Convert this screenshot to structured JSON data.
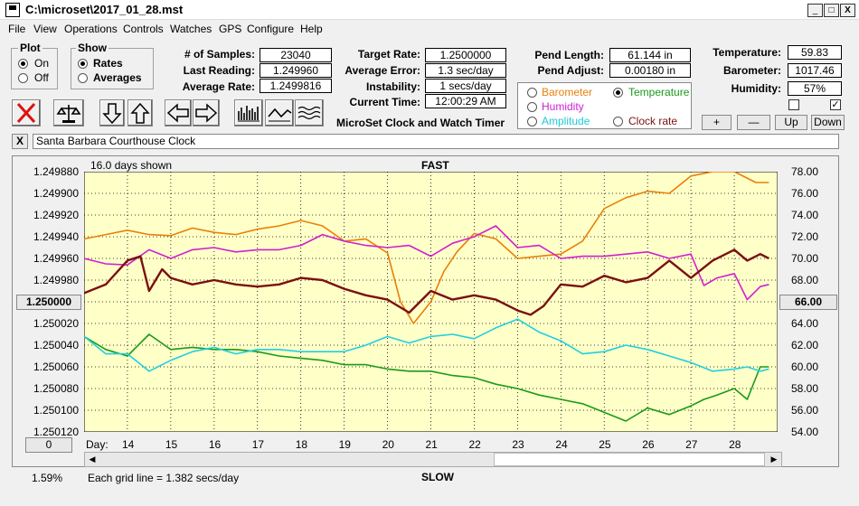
{
  "window": {
    "title": "C:\\microset\\2017_01_28.mst",
    "min": "_",
    "max": "□",
    "close": "X"
  },
  "menu": [
    "File",
    "View",
    "Operations",
    "Controls",
    "Watches",
    "GPS",
    "Configure",
    "Help"
  ],
  "plot_group": {
    "title": "Plot",
    "on": "On",
    "off": "Off",
    "selected": "On"
  },
  "show_group": {
    "title": "Show",
    "rates": "Rates",
    "averages": "Averages",
    "selected": "Rates"
  },
  "stats": {
    "samples_label": "# of Samples:",
    "samples": "23040",
    "last_label": "Last Reading:",
    "last": "1.249960",
    "avg_label": "Average Rate:",
    "avg": "1.2499816",
    "target_label": "Target Rate:",
    "target": "1.2500000",
    "error_label": "Average Error:",
    "error": "1.3 sec/day",
    "instab_label": "Instability:",
    "instab": "1 secs/day",
    "time_label": "Current Time:",
    "time": "12:00:29 AM",
    "pend_len_label": "Pend Length:",
    "pend_len": "61.144 in",
    "pend_adj_label": "Pend Adjust:",
    "pend_adj": "0.00180 in",
    "temp_label": "Temperature:",
    "temp": "59.83",
    "baro_label": "Barometer:",
    "baro": "1017.46",
    "hum_label": "Humidity:",
    "hum": "57%"
  },
  "app_caption": "MicroSet Clock and Watch Timer",
  "sensors": {
    "barometer": "Barometer",
    "temperature": "Temperature",
    "humidity": "Humidity",
    "amplitude": "Amplitude",
    "clock_rate": "Clock rate",
    "selected": "temperature",
    "colors": {
      "barometer": "#e8800a",
      "temperature": "#1a9a1a",
      "humidity": "#d020d0",
      "amplitude": "#20d0e0",
      "clock_rate": "#7a1010"
    }
  },
  "adjust_buttons": {
    "plus": "+",
    "minus": "—",
    "up": "Up",
    "down": "Down"
  },
  "checkboxes": [
    {
      "checked": false
    },
    {
      "checked": true
    }
  ],
  "watch_name": "Santa Barbara Courthouse Clock",
  "close_x": "X",
  "chart_header": {
    "days_shown": "16.0 days shown",
    "fast": "FAST",
    "slow": "SLOW"
  },
  "left_box": "1.250000",
  "right_box": "66.00",
  "bottom_left_box": "0",
  "percent": "1.59%",
  "grid_note": "Each grid line = 1.382 secs/day",
  "day_label": "Day:",
  "chart_data": {
    "type": "line",
    "x_label": "Day",
    "x_ticks": [
      14,
      15,
      16,
      17,
      18,
      19,
      20,
      21,
      22,
      23,
      24,
      25,
      26,
      27,
      28
    ],
    "xlim": [
      13.0,
      29.0
    ],
    "y_left_ticks": [
      "1.249880",
      "1.249900",
      "1.249920",
      "1.249940",
      "1.249960",
      "1.249980",
      "1.250000",
      "1.250020",
      "1.250040",
      "1.250060",
      "1.250080",
      "1.250100",
      "1.250120"
    ],
    "y_left_range": [
      1.24988,
      1.25012
    ],
    "y_right_ticks": [
      "78.00",
      "76.00",
      "74.00",
      "72.00",
      "70.00",
      "68.00",
      "66.00",
      "64.00",
      "62.00",
      "60.00",
      "58.00",
      "56.00",
      "54.00"
    ],
    "y_right_range": [
      78,
      54
    ],
    "series": [
      {
        "key": "barometer",
        "color": "#e8800a",
        "x": [
          13,
          13.5,
          14,
          14.5,
          15,
          15.5,
          16,
          16.5,
          17,
          17.5,
          18,
          18.5,
          19,
          19.5,
          20,
          20.3,
          20.6,
          21,
          21.3,
          21.6,
          22,
          22.5,
          23,
          23.5,
          24,
          24.5,
          25,
          25.5,
          26,
          26.5,
          27,
          27.5,
          28,
          28.5,
          28.8
        ],
        "y": [
          71.8,
          72.2,
          72.6,
          72.2,
          72.1,
          72.8,
          72.4,
          72.2,
          72.7,
          73.0,
          73.5,
          73.0,
          71.6,
          71.8,
          70.5,
          66.0,
          64.0,
          66.0,
          68.8,
          70.6,
          72.3,
          71.8,
          70.0,
          70.2,
          70.4,
          71.6,
          74.6,
          75.6,
          76.2,
          76.0,
          77.6,
          78.0,
          78.0,
          77.0,
          77.0
        ]
      },
      {
        "key": "humidity",
        "color": "#d020d0",
        "x": [
          13,
          13.5,
          14,
          14.5,
          15,
          15.5,
          16,
          16.5,
          17,
          17.5,
          18,
          18.5,
          19,
          19.5,
          20,
          20.5,
          21,
          21.5,
          22,
          22.5,
          23,
          23.5,
          24,
          24.5,
          25,
          25.5,
          26,
          26.5,
          27,
          27.3,
          27.6,
          28,
          28.3,
          28.6,
          28.8
        ],
        "y": [
          70.0,
          69.5,
          69.4,
          70.8,
          70.0,
          70.8,
          71.0,
          70.6,
          70.8,
          70.8,
          71.2,
          72.2,
          71.6,
          71.2,
          71.0,
          71.2,
          70.2,
          71.4,
          72.0,
          73.0,
          71.0,
          71.2,
          70.0,
          70.2,
          70.2,
          70.4,
          70.6,
          70.0,
          70.4,
          67.5,
          68.2,
          68.6,
          66.2,
          67.4,
          67.6
        ]
      },
      {
        "key": "temperature",
        "color": "#1a9a1a",
        "x": [
          13,
          13.5,
          14,
          14.5,
          15,
          15.5,
          16,
          16.5,
          17,
          17.5,
          18,
          18.5,
          19,
          19.5,
          20,
          20.5,
          21,
          21.5,
          22,
          22.5,
          23,
          23.5,
          24,
          24.5,
          25,
          25.5,
          26,
          26.5,
          27,
          27.3,
          27.6,
          28,
          28.3,
          28.6,
          28.8
        ],
        "y": [
          62.8,
          61.6,
          61.0,
          63.0,
          61.6,
          61.8,
          61.6,
          61.6,
          61.4,
          61.0,
          60.8,
          60.6,
          60.2,
          60.2,
          59.8,
          59.6,
          59.6,
          59.2,
          59.0,
          58.4,
          58.0,
          57.4,
          57.0,
          56.6,
          55.8,
          55.0,
          56.2,
          55.6,
          56.4,
          57.0,
          57.4,
          58.0,
          57.0,
          60.0,
          60.0
        ]
      },
      {
        "key": "amplitude",
        "color": "#20d0e0",
        "x": [
          13,
          13.5,
          14,
          14.5,
          15,
          15.5,
          16,
          16.5,
          17,
          17.5,
          18,
          18.5,
          19,
          19.5,
          20,
          20.5,
          21,
          21.5,
          22,
          22.5,
          23,
          23.5,
          24,
          24.5,
          25,
          25.5,
          26,
          26.5,
          27,
          27.5,
          28,
          28.3,
          28.6,
          28.8
        ],
        "y": [
          62.8,
          61.2,
          61.2,
          59.6,
          60.6,
          61.4,
          61.8,
          61.2,
          61.6,
          61.6,
          61.4,
          61.4,
          61.4,
          62.0,
          62.8,
          62.2,
          62.8,
          63.0,
          62.6,
          63.6,
          64.4,
          63.2,
          62.4,
          61.2,
          61.4,
          62.0,
          61.6,
          61.0,
          60.4,
          59.6,
          59.8,
          60.0,
          59.6,
          59.8
        ]
      },
      {
        "key": "clock_rate",
        "color": "#7a1010",
        "x": [
          13,
          13.5,
          14,
          14.3,
          14.5,
          14.8,
          15,
          15.5,
          16,
          16.5,
          17,
          17.5,
          18,
          18.5,
          19,
          19.5,
          20,
          20.5,
          21,
          21.5,
          22,
          22.5,
          23,
          23.3,
          23.6,
          24,
          24.5,
          25,
          25.5,
          26,
          26.5,
          27,
          27.5,
          28,
          28.3,
          28.6,
          28.8
        ],
        "y": [
          1.249992,
          1.249984,
          1.249962,
          1.249958,
          1.24999,
          1.24997,
          1.249978,
          1.249984,
          1.24998,
          1.249984,
          1.249986,
          1.249984,
          1.249978,
          1.24998,
          1.249988,
          1.249994,
          1.249998,
          1.25001,
          1.24999,
          1.249998,
          1.249994,
          1.249998,
          1.250008,
          1.250012,
          1.250004,
          1.249984,
          1.249986,
          1.249976,
          1.249982,
          1.249978,
          1.249962,
          1.249978,
          1.249962,
          1.249952,
          1.249962,
          1.249956,
          1.24996
        ]
      }
    ]
  }
}
